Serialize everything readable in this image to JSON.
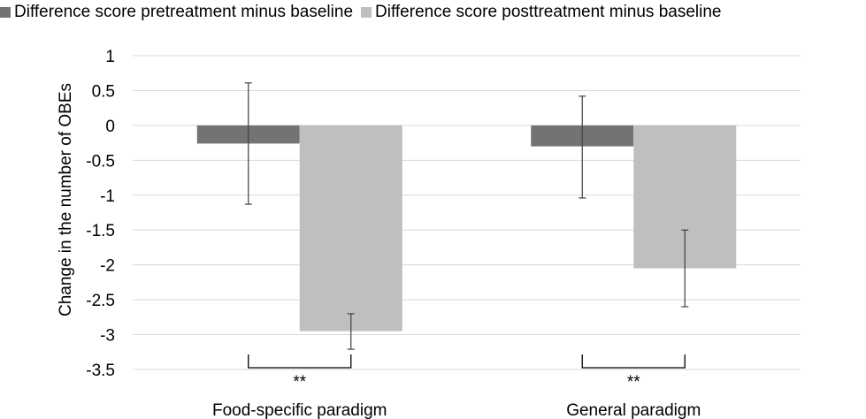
{
  "chart_data": {
    "type": "bar",
    "categories": [
      "Food-specific paradigm",
      "General paradigm"
    ],
    "series": [
      {
        "name": "Difference score pretreatment minus baseline",
        "color": "#737373",
        "values": [
          -0.26,
          -0.3
        ],
        "error_upper": [
          0.61,
          0.42
        ],
        "error_lower": [
          -1.13,
          -1.04
        ]
      },
      {
        "name": "Difference score posttreatment minus baseline",
        "color": "#bfbfbf",
        "values": [
          -2.95,
          -2.05
        ],
        "error_upper": [
          -2.7,
          -1.5
        ],
        "error_lower": [
          -3.21,
          -2.6
        ]
      }
    ],
    "ylabel": "Change in the number of OBEs",
    "xlabel": "",
    "ylim": [
      -3.5,
      1
    ],
    "yticks": [
      "1",
      "0.5",
      "0",
      "-0.5",
      "-1",
      "-1.5",
      "-2",
      "-2.5",
      "-3",
      "-3.5"
    ],
    "grid": true,
    "legend": "top",
    "annotations": [
      {
        "category": "Food-specific paradigm",
        "text": "**"
      },
      {
        "category": "General paradigm",
        "text": "**"
      }
    ]
  }
}
